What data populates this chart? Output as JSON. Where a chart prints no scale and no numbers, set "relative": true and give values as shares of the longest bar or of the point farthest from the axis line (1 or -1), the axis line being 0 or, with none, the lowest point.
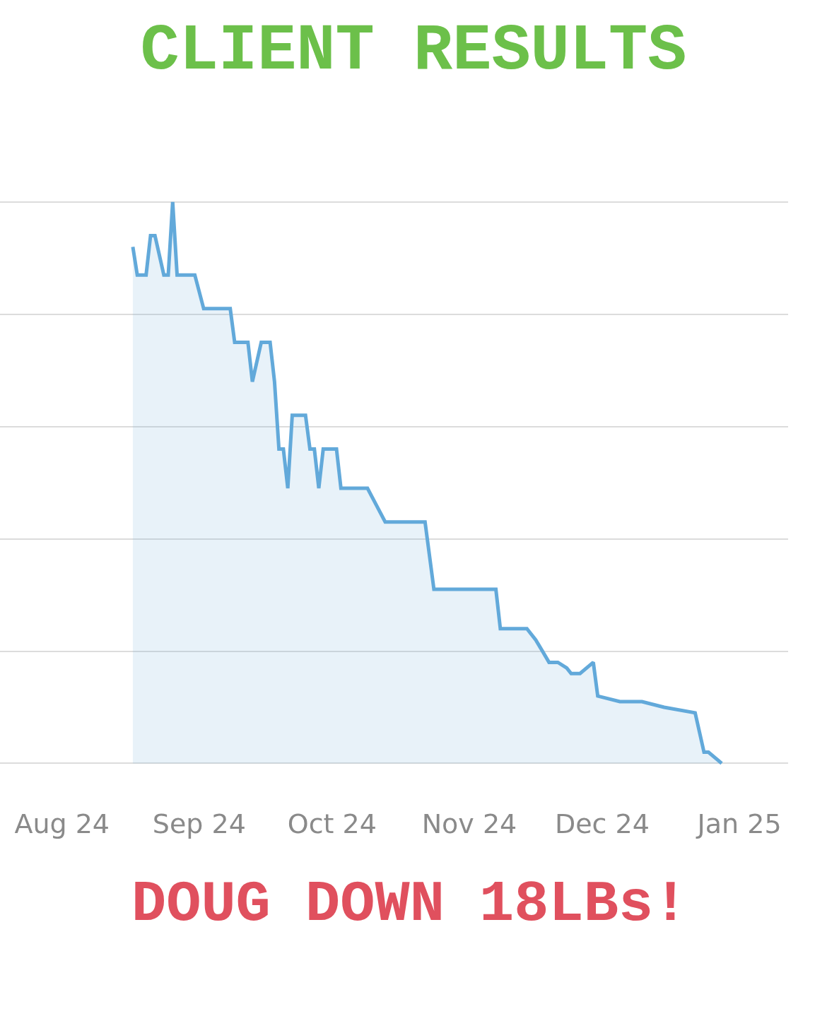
{
  "chart_data": {
    "type": "area",
    "title": "CLIENT RESULTS",
    "annotations": [
      "DOUG DOWN 18LBs!"
    ],
    "relative": true,
    "grid": "y",
    "tick_labels": "x",
    "x": [
      "2024-08-17",
      "2024-08-18",
      "2024-08-20",
      "2024-08-21",
      "2024-08-22",
      "2024-08-24",
      "2024-08-25",
      "2024-08-26",
      "2024-08-27",
      "2024-08-31",
      "2024-09-02",
      "2024-09-08",
      "2024-09-09",
      "2024-09-12",
      "2024-09-13",
      "2024-09-15",
      "2024-09-17",
      "2024-09-18",
      "2024-09-19",
      "2024-09-20",
      "2024-09-21",
      "2024-09-22",
      "2024-09-25",
      "2024-09-26",
      "2024-09-27",
      "2024-09-28",
      "2024-09-29",
      "2024-10-02",
      "2024-10-03",
      "2024-10-09",
      "2024-10-11",
      "2024-10-13",
      "2024-10-22",
      "2024-10-24",
      "2024-11-07",
      "2024-11-08",
      "2024-11-14",
      "2024-11-16",
      "2024-11-19",
      "2024-11-21",
      "2024-11-23",
      "2024-11-24",
      "2024-11-26",
      "2024-11-29",
      "2024-11-30",
      "2024-12-05",
      "2024-12-10",
      "2024-12-15",
      "2024-12-22",
      "2024-12-24",
      "2024-12-25",
      "2024-12-28"
    ],
    "series": [
      {
        "color": "#62a9da",
        "values": [
          0.92,
          0.87,
          0.87,
          0.94,
          0.94,
          0.87,
          0.87,
          1,
          0.87,
          0.87,
          0.81,
          0.81,
          0.75,
          0.75,
          0.68,
          0.75,
          0.75,
          0.68,
          0.56,
          0.56,
          0.49,
          0.62,
          0.62,
          0.56,
          0.56,
          0.49,
          0.56,
          0.56,
          0.49,
          0.49,
          0.46,
          0.43,
          0.43,
          0.31,
          0.31,
          0.24,
          0.24,
          0.22,
          0.18,
          0.18,
          0.17,
          0.16,
          0.16,
          0.18,
          0.12,
          0.11,
          0.11,
          0.1,
          0.09,
          0.02,
          0.02,
          0
        ]
      }
    ],
    "xlim": [
      "2024-07-18",
      "2025-01-12"
    ],
    "xticks": [
      {
        "value": "2024-08-01",
        "label": "Aug 24"
      },
      {
        "value": "2024-09-01",
        "label": "Sep 24"
      },
      {
        "value": "2024-10-01",
        "label": "Oct 24"
      },
      {
        "value": "2024-11-01",
        "label": "Nov 24"
      },
      {
        "value": "2024-12-01",
        "label": "Dec 24"
      },
      {
        "value": "2025-01-01",
        "label": "Jan 25"
      }
    ]
  }
}
